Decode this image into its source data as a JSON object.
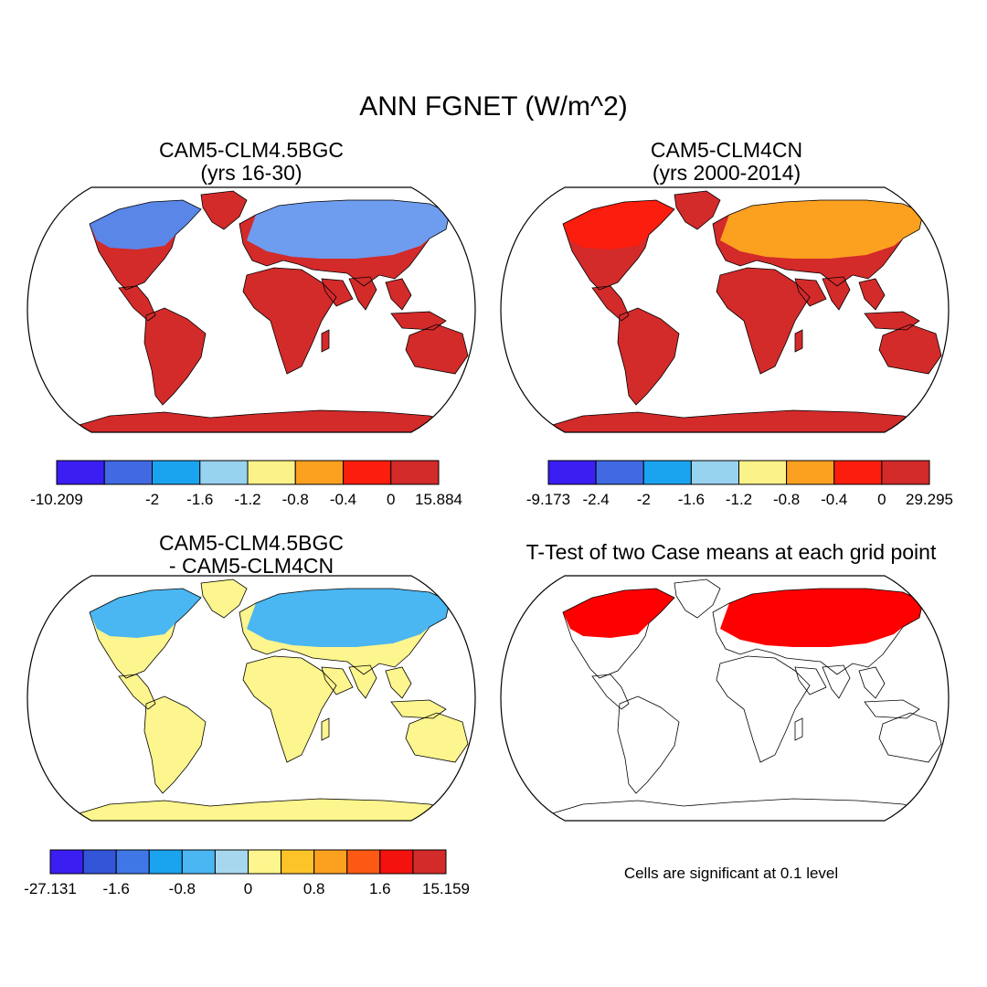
{
  "title": "ANN FGNET (W/m^2)",
  "panels": [
    {
      "id": "p1",
      "title_line1": "CAM5-CLM4.5BGC",
      "title_line2": "(yrs 16-30)",
      "colorbar": {
        "colors": [
          "#3a1ef2",
          "#4169e1",
          "#1aa3ee",
          "#97d2ef",
          "#fbf28a",
          "#fca020",
          "#fb1d0d",
          "#d32a2a"
        ],
        "labels": [
          "-10.209",
          "-2",
          "-1.6",
          "-1.2",
          "-0.8",
          "-0.4",
          "0",
          "15.884"
        ],
        "label_bounds": [
          0,
          2,
          3,
          4,
          5,
          6,
          7,
          8
        ]
      },
      "fill_colors": {
        "high": "#d32a2a",
        "mid": "#fb1d0d",
        "cool": "#4169e1",
        "cold": "#3a1ef2",
        "light": "#97d2ef"
      }
    },
    {
      "id": "p2",
      "title_line1": "CAM5-CLM4CN",
      "title_line2": "(yrs 2000-2014)",
      "colorbar": {
        "colors": [
          "#3a1ef2",
          "#4169e1",
          "#1aa3ee",
          "#97d2ef",
          "#fbf28a",
          "#fca020",
          "#fb1d0d",
          "#d32a2a"
        ],
        "labels": [
          "-9.173",
          "-2.4",
          "-2",
          "-1.6",
          "-1.2",
          "-0.8",
          "-0.4",
          "0",
          "29.295"
        ],
        "label_bounds": [
          0,
          1,
          2,
          3,
          4,
          5,
          6,
          7,
          8
        ]
      }
    },
    {
      "id": "p3",
      "title_line1": "CAM5-CLM4.5BGC",
      "title_line2": "- CAM5-CLM4CN",
      "colorbar": {
        "colors": [
          "#3a1ef2",
          "#3355d8",
          "#3f78e6",
          "#1aa3ee",
          "#4ab6f2",
          "#a6d7ef",
          "#fdf58d",
          "#fdc42a",
          "#fca020",
          "#fc5a14",
          "#f3120e",
          "#d32a2a"
        ],
        "labels": [
          "-27.131",
          "-1.6",
          "-0.8",
          "0",
          "0.8",
          "1.6",
          "15.159"
        ],
        "label_bounds": [
          0,
          2,
          4,
          6,
          8,
          10,
          12
        ]
      }
    },
    {
      "id": "p4",
      "title_line1": "T-Test of two Case means at each grid point",
      "note": "Cells are significant at 0.1 level",
      "fill_color": "#ff0000"
    }
  ]
}
